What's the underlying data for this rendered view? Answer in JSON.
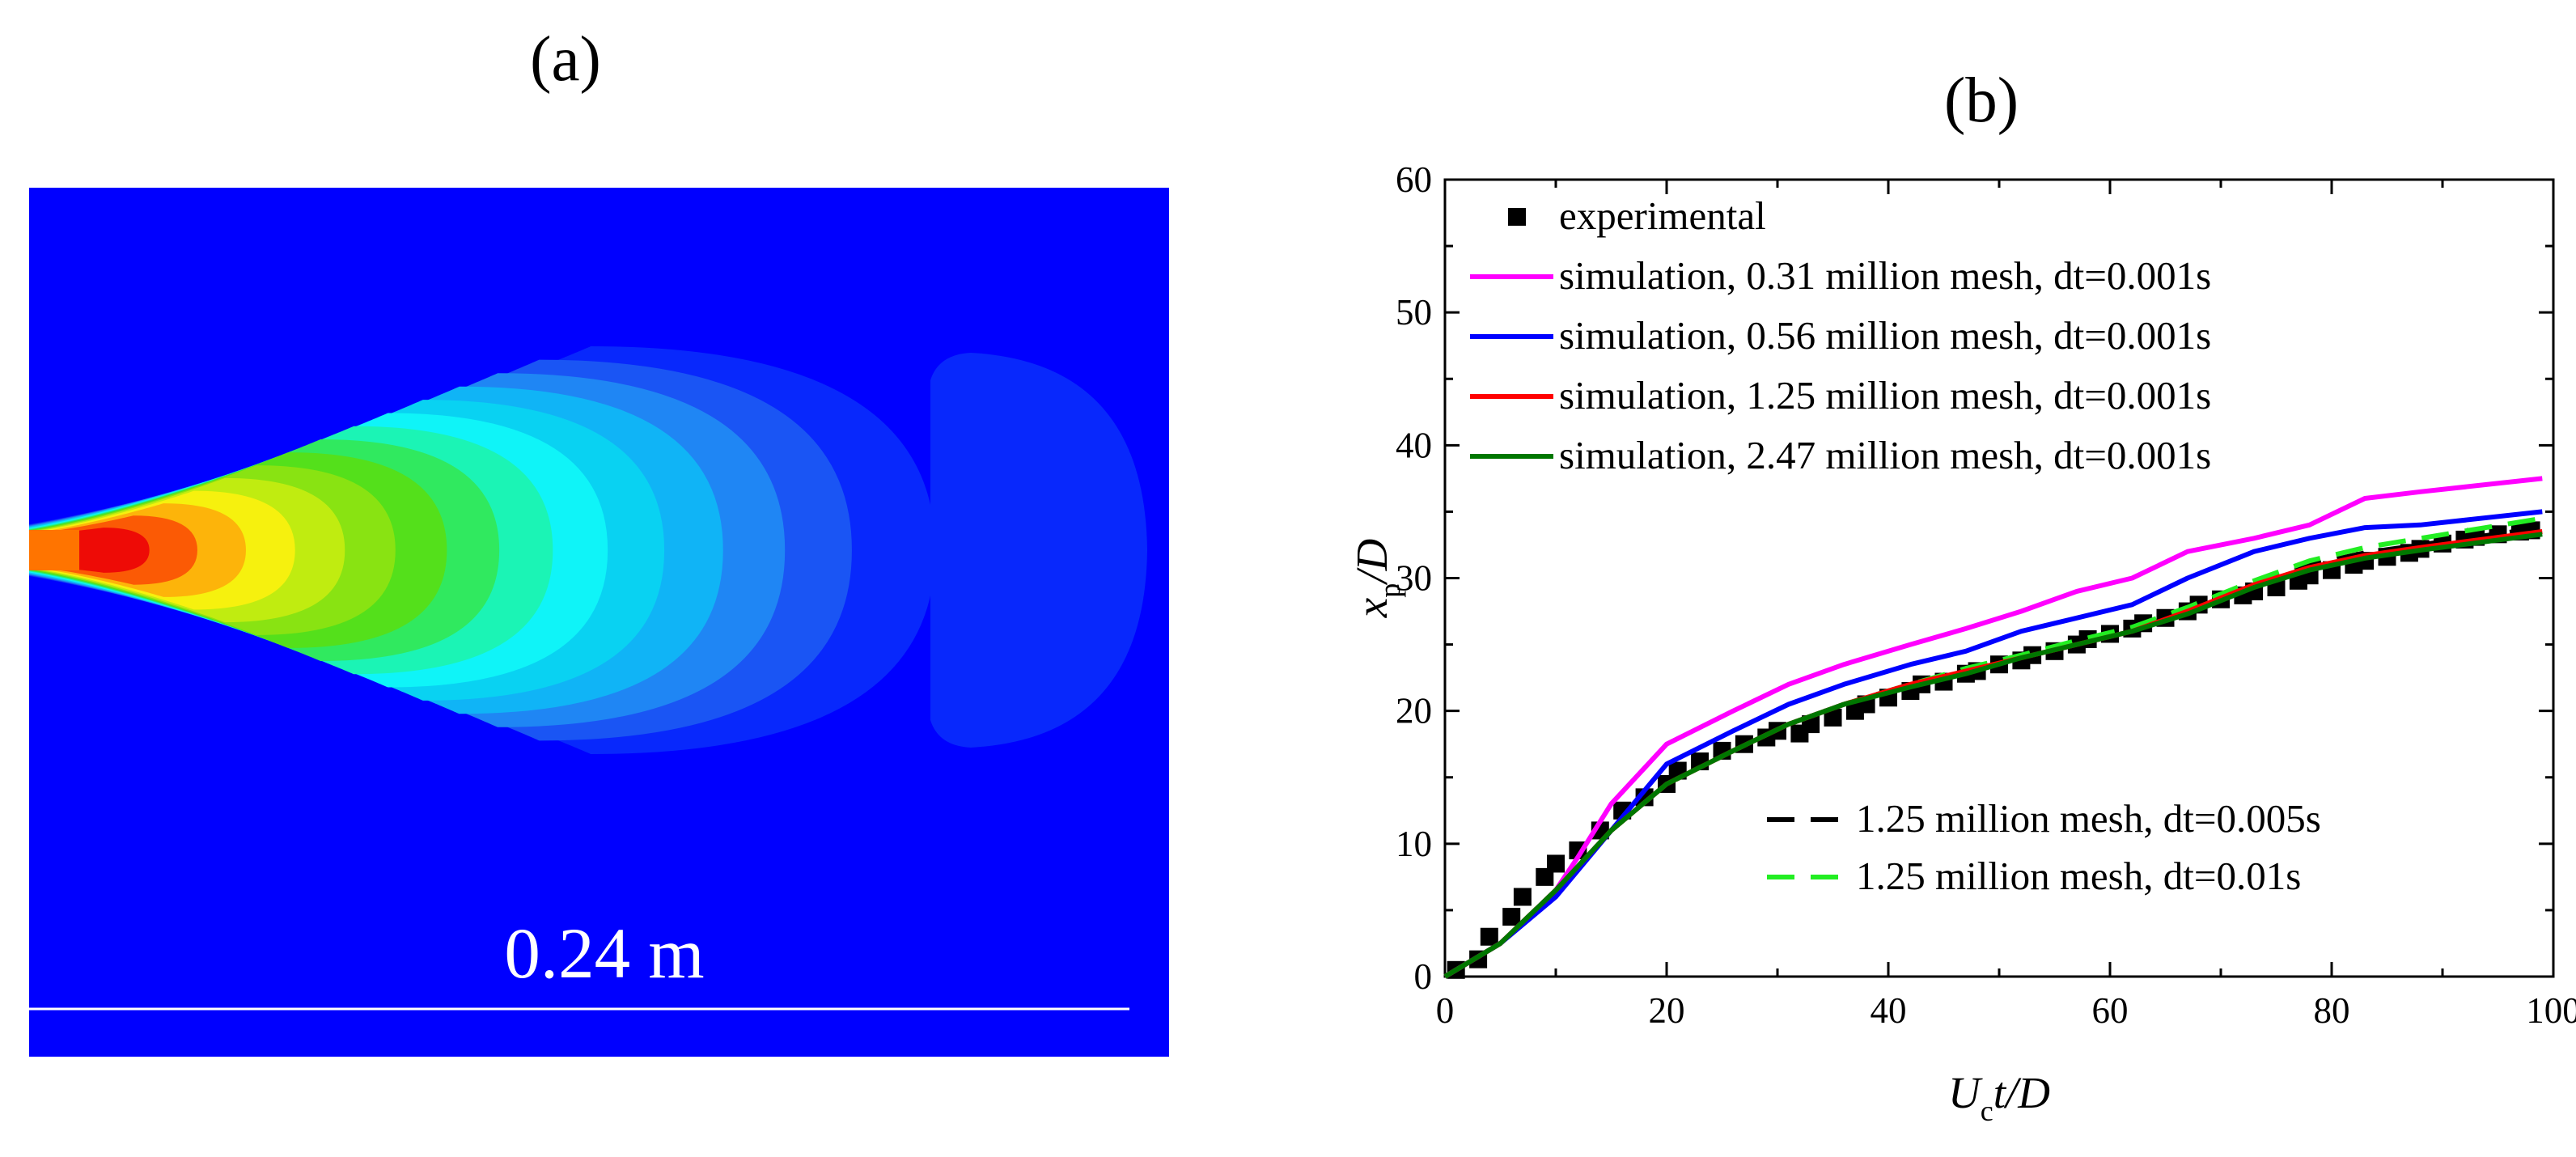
{
  "panel_a": {
    "label": "(a)",
    "scale_text": "0.24 m",
    "colors": {
      "background": "#0000ff",
      "contours": [
        "#0828fc",
        "#1a55f4",
        "#1f86f4",
        "#10b4f6",
        "#09d2f2",
        "#0ff4f8",
        "#1bf4b5",
        "#30e95f",
        "#54e01b",
        "#89e312",
        "#c0ec10",
        "#f6f10e",
        "#fdb40a",
        "#fb5a05",
        "#ee0b06",
        "#ff7400"
      ]
    }
  },
  "chart_data": {
    "type": "line",
    "panel_label": "(b)",
    "xlabel": {
      "base": "U",
      "sub": "c",
      "rest": "t/D"
    },
    "ylabel": {
      "base": "x",
      "sub": "p",
      "rest": "/D"
    },
    "xlim": [
      0,
      100
    ],
    "ylim": [
      0,
      60
    ],
    "xticks": [
      0,
      20,
      40,
      60,
      80,
      100
    ],
    "yticks": [
      0,
      10,
      20,
      30,
      40,
      50,
      60
    ],
    "legend_top": "top-left",
    "legend_bottom": "lower-right",
    "experimental": {
      "name": "experimental",
      "marker": "square",
      "color": "#000000",
      "points": [
        [
          1,
          0.5
        ],
        [
          3,
          1.3
        ],
        [
          4,
          3
        ],
        [
          6,
          4.5
        ],
        [
          7,
          6
        ],
        [
          9,
          7.5
        ],
        [
          10,
          8.5
        ],
        [
          12,
          9.5
        ],
        [
          14,
          11
        ],
        [
          16,
          12.5
        ],
        [
          18,
          13.5
        ],
        [
          20,
          14.5
        ],
        [
          21,
          15.5
        ],
        [
          23,
          16.2
        ],
        [
          25,
          17
        ],
        [
          27,
          17.5
        ],
        [
          29,
          18
        ],
        [
          30,
          18.5
        ],
        [
          32,
          18.3
        ],
        [
          33,
          19
        ],
        [
          35,
          19.5
        ],
        [
          37,
          20
        ],
        [
          38,
          20.5
        ],
        [
          40,
          21
        ],
        [
          42,
          21.5
        ],
        [
          43,
          22
        ],
        [
          45,
          22.2
        ],
        [
          47,
          22.8
        ],
        [
          48,
          23
        ],
        [
          50,
          23.5
        ],
        [
          52,
          23.8
        ],
        [
          53,
          24.2
        ],
        [
          55,
          24.5
        ],
        [
          57,
          25
        ],
        [
          58,
          25.4
        ],
        [
          60,
          25.8
        ],
        [
          62,
          26.2
        ],
        [
          63,
          26.6
        ],
        [
          65,
          27
        ],
        [
          67,
          27.5
        ],
        [
          68,
          28
        ],
        [
          70,
          28.4
        ],
        [
          72,
          28.7
        ],
        [
          73,
          29
        ],
        [
          75,
          29.3
        ],
        [
          77,
          29.8
        ],
        [
          78,
          30.2
        ],
        [
          80,
          30.6
        ],
        [
          82,
          31
        ],
        [
          83,
          31.3
        ],
        [
          85,
          31.6
        ],
        [
          87,
          31.9
        ],
        [
          88,
          32.2
        ],
        [
          90,
          32.6
        ],
        [
          92,
          32.9
        ],
        [
          93,
          33.1
        ],
        [
          95,
          33.3
        ],
        [
          97,
          33.5
        ],
        [
          98,
          33.6
        ]
      ]
    },
    "series": [
      {
        "name": "simulation, 0.31 million mesh, dt=0.001s",
        "color": "#ff00ff",
        "dash": "solid",
        "x": [
          0,
          5,
          10,
          12,
          15,
          20,
          26,
          31,
          36,
          42,
          47,
          52,
          57,
          62,
          67,
          73,
          78,
          83,
          88,
          99
        ],
        "y": [
          0,
          2.5,
          6.5,
          9,
          13,
          17.5,
          20,
          22,
          23.5,
          25,
          26.2,
          27.5,
          29,
          30,
          32,
          33,
          34,
          36,
          36.5,
          37.5
        ]
      },
      {
        "name": "simulation, 0.56 million mesh, dt=0.001s",
        "color": "#0000ff",
        "dash": "solid",
        "x": [
          0,
          5,
          10,
          15,
          20,
          26,
          31,
          36,
          42,
          47,
          52,
          57,
          62,
          67,
          73,
          78,
          83,
          88,
          99
        ],
        "y": [
          0,
          2.5,
          6,
          11,
          16,
          18.5,
          20.5,
          22,
          23.5,
          24.5,
          26,
          27,
          28,
          30,
          32,
          33,
          33.8,
          34,
          35
        ]
      },
      {
        "name": "simulation, 1.25 million mesh, dt=0.001s",
        "color": "#ff0000",
        "dash": "solid",
        "x": [
          0,
          5,
          10,
          15,
          20,
          26,
          31,
          36,
          42,
          47,
          52,
          57,
          62,
          67,
          73,
          78,
          83,
          88,
          99
        ],
        "y": [
          0,
          2.5,
          6.5,
          11,
          14.5,
          17,
          19,
          20.5,
          22,
          23,
          24,
          25,
          26,
          27.5,
          29.5,
          30.8,
          31.7,
          32.3,
          33.5
        ]
      },
      {
        "name": "simulation, 2.47 million mesh, dt=0.001s",
        "color": "#007700",
        "dash": "solid",
        "x": [
          0,
          5,
          10,
          15,
          20,
          26,
          31,
          36,
          42,
          47,
          52,
          57,
          62,
          67,
          73,
          78,
          83,
          88,
          99
        ],
        "y": [
          0,
          2.5,
          6.5,
          11,
          14.5,
          17,
          19,
          20.5,
          21.8,
          22.8,
          24,
          25,
          26,
          27.3,
          29.3,
          30.6,
          31.5,
          32.1,
          33.3
        ]
      },
      {
        "name": "1.25 million mesh, dt=0.005s",
        "color": "#000000",
        "dash": "dash",
        "x": [
          0,
          5,
          10,
          15,
          20,
          26,
          31,
          36,
          42,
          47,
          52,
          57,
          62,
          67,
          73,
          78,
          83,
          88,
          99
        ],
        "y": [
          0,
          2.5,
          6.5,
          11,
          14.5,
          17,
          19,
          20.5,
          22,
          23,
          24,
          25,
          26,
          27.5,
          29.5,
          31,
          31.9,
          32.5,
          33.8
        ]
      },
      {
        "name": "1.25 million mesh, dt=0.01s",
        "color": "#22ee22",
        "dash": "dash",
        "x": [
          0,
          5,
          10,
          15,
          20,
          26,
          31,
          36,
          42,
          47,
          52,
          57,
          62,
          67,
          73,
          78,
          83,
          88,
          99
        ],
        "y": [
          0,
          2.5,
          6.5,
          11,
          14.5,
          17,
          19,
          20.5,
          22,
          23.2,
          24.2,
          25.3,
          26.3,
          27.8,
          29.8,
          31.3,
          32.3,
          33,
          34.5
        ]
      }
    ]
  }
}
